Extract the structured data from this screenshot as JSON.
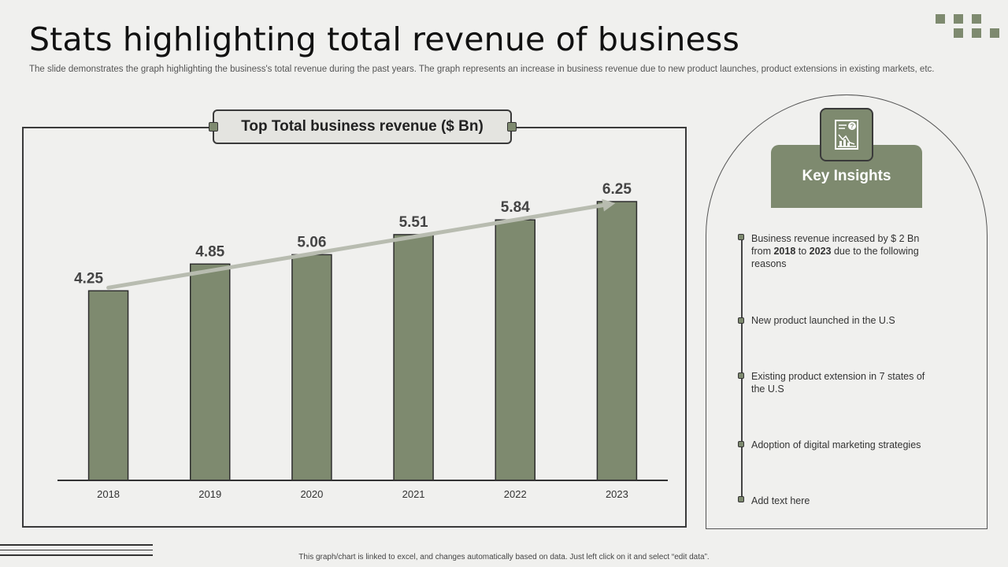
{
  "slide": {
    "title": "Stats highlighting total revenue of business",
    "subtitle": "The slide demonstrates the graph highlighting the business's total revenue during the past years. The graph represents an increase in business revenue due to new product launches, product extensions in existing markets, etc.",
    "footnote": "This graph/chart is linked to excel, and changes automatically based on data. Just left click on it and select “edit data”."
  },
  "colors": {
    "accent": "#7e8a6f",
    "trend_arrow": "#b8bcb0",
    "frame": "#3a3a3a",
    "background": "#f0f0ee"
  },
  "chart_data": {
    "type": "bar",
    "title": "Top Total business revenue ($ Bn)",
    "categories": [
      "2018",
      "2019",
      "2020",
      "2021",
      "2022",
      "2023"
    ],
    "values": [
      4.25,
      4.85,
      5.06,
      5.51,
      5.84,
      6.25
    ],
    "value_labels": [
      "4.25",
      "4.85",
      "5.06",
      "5.51",
      "5.84",
      "6.25"
    ],
    "ylim": [
      0,
      6.5
    ],
    "grid": false,
    "trend_arrow": true
  },
  "insights": {
    "header": "Key Insights",
    "icon": "report-chart-icon",
    "items": [
      {
        "pre": "Business revenue  increased by $ 2 Bn from ",
        "b1": "2018",
        "mid": " to ",
        "b2": "2023",
        "post": " due to the following reasons"
      },
      {
        "text": "New product launched in the U.S"
      },
      {
        "text": "Existing product extension in 7 states of the U.S"
      },
      {
        "text": "Adoption of digital marketing strategies"
      },
      {
        "text": "Add text here"
      }
    ]
  }
}
